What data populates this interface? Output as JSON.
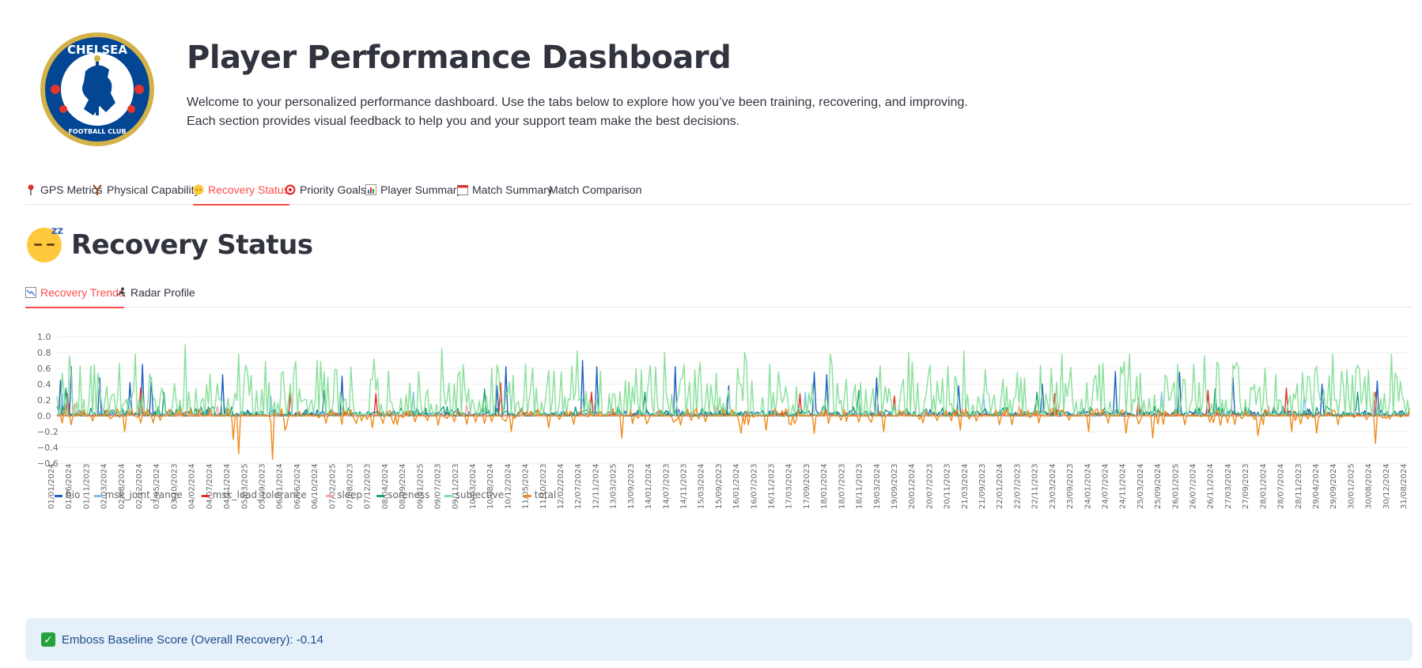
{
  "header": {
    "logo_text_top": "CHELSEA",
    "logo_text_bottom": "FOOTBALL CLUB",
    "title": "Player Performance Dashboard",
    "intro_line1": "Welcome to your personalized performance dashboard. Use the tabs below to explore how you’ve been training, recovering, and improving.",
    "intro_line2": "Each section provides visual feedback to help you and your support team make the best decisions."
  },
  "tabs": [
    {
      "label": "GPS Metrics",
      "icon": "pin-icon"
    },
    {
      "label": "Physical Capability",
      "icon": "slingshot-icon"
    },
    {
      "label": "Recovery Status",
      "icon": "sleeping-face-icon",
      "active": true
    },
    {
      "label": "Priority Goals",
      "icon": "target-icon"
    },
    {
      "label": "Player Summary",
      "icon": "bar-chart-icon"
    },
    {
      "label": "Match Summary",
      "icon": "calendar-icon"
    },
    {
      "label": "Match Comparison",
      "icon": ""
    }
  ],
  "section": {
    "title": "Recovery Status",
    "icon": "sleeping-face-icon"
  },
  "subtabs": [
    {
      "label": "Recovery Trends",
      "icon": "trend-chart-icon",
      "active": true
    },
    {
      "label": "Radar Profile",
      "icon": "runner-icon"
    }
  ],
  "chart_data": {
    "type": "line",
    "title": "",
    "xlabel": "",
    "ylabel": "",
    "ylim": [
      -0.6,
      1.0
    ],
    "yticks": [
      "1.0",
      "0.8",
      "0.6",
      "0.4",
      "0.2",
      "0.0",
      "−0.2",
      "−0.4",
      "−0.6"
    ],
    "grid": true,
    "legend_position": "bottom-left",
    "categories": [
      "01/01/2024",
      "01/06/2024",
      "01/11/2023",
      "02/03/2024",
      "02/08/2024",
      "02/12/2024",
      "03/05/2024",
      "03/10/2023",
      "04/02/2024",
      "04/07/2024",
      "04/11/2024",
      "05/03/2025",
      "05/09/2023",
      "06/01/2024",
      "06/06/2024",
      "06/10/2024",
      "07/02/2025",
      "07/08/2023",
      "07/12/2023",
      "08/04/2024",
      "08/09/2024",
      "09/01/2025",
      "09/07/2023",
      "09/11/2023",
      "10/03/2024",
      "10/08/2024",
      "10/12/2024",
      "11/05/2024",
      "11/10/2023",
      "12/02/2024",
      "12/07/2024",
      "12/11/2024",
      "13/03/2025",
      "13/09/2023",
      "14/01/2024",
      "14/07/2023",
      "14/11/2023",
      "15/03/2024",
      "15/09/2023",
      "16/01/2024",
      "16/07/2023",
      "16/11/2023",
      "17/03/2024",
      "17/09/2023",
      "18/01/2024",
      "18/07/2023",
      "18/11/2023",
      "19/03/2024",
      "19/09/2023",
      "20/01/2024",
      "20/07/2023",
      "20/11/2023",
      "21/03/2024",
      "21/09/2023",
      "22/01/2024",
      "22/07/2023",
      "22/11/2023",
      "23/03/2024",
      "23/09/2023",
      "24/01/2024",
      "24/07/2024",
      "24/11/2024",
      "25/03/2024",
      "25/09/2024",
      "26/01/2025",
      "26/07/2024",
      "26/11/2024",
      "27/03/2024",
      "27/09/2023",
      "28/01/2024",
      "28/07/2024",
      "28/11/2023",
      "29/04/2024",
      "29/09/2024",
      "30/01/2025",
      "30/08/2024",
      "30/12/2024",
      "31/08/2024"
    ],
    "series": [
      {
        "name": "bio",
        "color": "#1f5fbf",
        "peaks": [
          [
            2,
            0.45
          ],
          [
            8,
            0.62
          ],
          [
            24,
            0.48
          ],
          [
            41,
            0.42
          ],
          [
            48,
            0.65
          ],
          [
            53,
            0.48
          ],
          [
            93,
            0.52
          ],
          [
            160,
            0.5
          ],
          [
            247,
            0.38
          ],
          [
            252,
            0.62
          ],
          [
            295,
            0.7
          ],
          [
            303,
            0.62
          ],
          [
            347,
            0.62
          ],
          [
            377,
            0.38
          ],
          [
            425,
            0.55
          ],
          [
            432,
            0.52
          ],
          [
            460,
            0.48
          ],
          [
            506,
            0.38
          ],
          [
            553,
            0.4
          ],
          [
            594,
            0.56
          ],
          [
            630,
            0.55
          ],
          [
            660,
            0.48
          ],
          [
            710,
            0.4
          ],
          [
            741,
            0.44
          ]
        ],
        "base": 0.08
      },
      {
        "name": "msk_joint_range",
        "color": "#7cc4ec",
        "peaks": [
          [
            3,
            0.28
          ],
          [
            40,
            0.22
          ],
          [
            120,
            0.25
          ],
          [
            200,
            0.3
          ],
          [
            310,
            0.26
          ],
          [
            420,
            0.3
          ],
          [
            520,
            0.28
          ],
          [
            620,
            0.3
          ],
          [
            700,
            0.25
          ]
        ],
        "base": 0.06
      },
      {
        "name": "msk_load_tolerance",
        "color": "#e0302a",
        "peaks": [
          [
            6,
            0.28
          ],
          [
            47,
            0.35
          ],
          [
            131,
            0.28
          ],
          [
            179,
            0.28
          ],
          [
            249,
            0.42
          ],
          [
            300,
            0.3
          ],
          [
            417,
            0.28
          ],
          [
            470,
            0.25
          ],
          [
            560,
            0.28
          ],
          [
            607,
            0.22
          ],
          [
            646,
            0.32
          ],
          [
            690,
            0.35
          ],
          [
            740,
            0.3
          ]
        ],
        "base": 0.04
      },
      {
        "name": "sleep",
        "color": "#f4a4a4",
        "peaks": [
          [
            10,
            0.15
          ],
          [
            90,
            0.12
          ],
          [
            230,
            0.14
          ],
          [
            370,
            0.12
          ],
          [
            540,
            0.13
          ],
          [
            680,
            0.12
          ]
        ],
        "base": 0.02
      },
      {
        "name": "soreness",
        "color": "#1f9e7a",
        "peaks": [
          [
            5,
            0.35
          ],
          [
            60,
            0.3
          ],
          [
            150,
            0.32
          ],
          [
            240,
            0.34
          ],
          [
            330,
            0.3
          ],
          [
            450,
            0.32
          ],
          [
            550,
            0.3
          ],
          [
            650,
            0.34
          ],
          [
            730,
            0.3
          ]
        ],
        "base": 0.12
      },
      {
        "name": "subjective",
        "color": "#88e09a",
        "peaks": [
          [
            7,
            0.75
          ],
          [
            44,
            0.78
          ],
          [
            72,
            0.9
          ],
          [
            102,
            0.78
          ],
          [
            146,
            0.7
          ],
          [
            178,
            0.72
          ],
          [
            216,
            0.85
          ],
          [
            292,
            0.82
          ],
          [
            341,
            0.8
          ],
          [
            386,
            0.8
          ],
          [
            434,
            0.78
          ],
          [
            478,
            0.8
          ],
          [
            509,
            0.82
          ],
          [
            564,
            0.78
          ],
          [
            602,
            0.78
          ],
          [
            644,
            0.76
          ],
          [
            716,
            0.78
          ],
          [
            749,
            0.78
          ]
        ],
        "base": 0.3
      },
      {
        "name": "total",
        "color": "#f08a1a",
        "peaks": [
          [
            38,
            -0.2
          ],
          [
            99,
            -0.3
          ],
          [
            102,
            -0.48
          ],
          [
            121,
            -0.55
          ],
          [
            128,
            -0.18
          ],
          [
            177,
            -0.15
          ],
          [
            214,
            -0.12
          ],
          [
            255,
            -0.2
          ],
          [
            276,
            -0.15
          ],
          [
            317,
            -0.28
          ],
          [
            350,
            -0.12
          ],
          [
            384,
            -0.22
          ],
          [
            398,
            -0.18
          ],
          [
            425,
            -0.22
          ],
          [
            464,
            -0.2
          ],
          [
            507,
            -0.18
          ],
          [
            579,
            -0.2
          ],
          [
            600,
            -0.22
          ],
          [
            615,
            -0.28
          ],
          [
            653,
            -0.12
          ],
          [
            674,
            -0.25
          ],
          [
            693,
            -0.2
          ],
          [
            707,
            -0.22
          ],
          [
            740,
            -0.35
          ]
        ],
        "base": -0.05
      }
    ]
  },
  "alert": {
    "text": "Emboss Baseline Score (Overall Recovery): -0.14"
  }
}
